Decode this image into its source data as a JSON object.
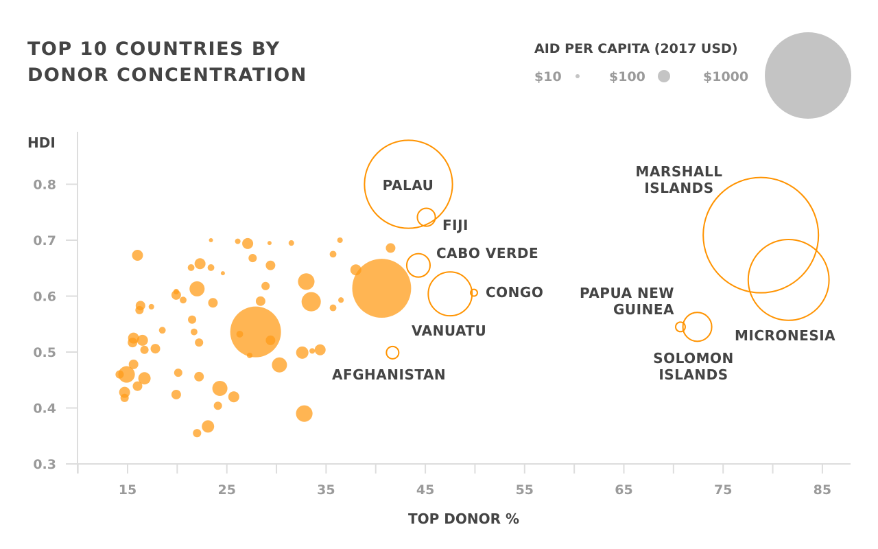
{
  "title_lines": [
    "TOP 10 COUNTRIES BY",
    "DONOR CONCENTRATION"
  ],
  "legend": {
    "title": "AID PER CAPITA (2017 USD)",
    "items": [
      {
        "label": "$10",
        "value": 10
      },
      {
        "label": "$100",
        "value": 100
      },
      {
        "label": "$1000",
        "value": 1000
      }
    ],
    "color": "#c4c4c4"
  },
  "colors": {
    "fill": "#ff9c1a",
    "highlight_stroke": "#ff9300",
    "text": "#444444",
    "tick": "#9a9a9a",
    "axis": "#dddddd"
  },
  "chart_data": {
    "type": "scatter",
    "title": "TOP 10 COUNTRIES BY DONOR CONCENTRATION",
    "xlabel": "TOP DONOR %",
    "ylabel": "HDI",
    "size_label": "AID PER CAPITA (2017 USD)",
    "xlim": [
      10,
      88
    ],
    "ylim": [
      0.3,
      0.85
    ],
    "xticks": [
      15,
      25,
      35,
      45,
      55,
      65,
      75,
      85
    ],
    "yticks": [
      0.3,
      0.4,
      0.5,
      0.6,
      0.7,
      0.8
    ],
    "grid": false,
    "legend_position": "top-right",
    "highlighted": [
      {
        "name": "PALAU",
        "x": 43.3,
        "y": 0.8,
        "aid": 1050
      },
      {
        "name": "FIJI",
        "x": 45.1,
        "y": 0.741,
        "aid": 119
      },
      {
        "name": "CABO VERDE",
        "x": 44.3,
        "y": 0.655,
        "aid": 141
      },
      {
        "name": "VANUATU",
        "x": 47.5,
        "y": 0.604,
        "aid": 266
      },
      {
        "name": "CONGO",
        "x": 49.9,
        "y": 0.606,
        "aid": 21
      },
      {
        "name": "AFGHANISTAN",
        "x": 41.7,
        "y": 0.499,
        "aid": 100
      },
      {
        "name": "MARSHALL ISLANDS",
        "x": 78.8,
        "y": 0.709,
        "aid": 2450
      },
      {
        "name": "PAPUA NEW GUINEA",
        "x": 70.7,
        "y": 0.545,
        "aid": 46
      },
      {
        "name": "SOLOMON ISLANDS",
        "x": 72.4,
        "y": 0.545,
        "aid": 167
      },
      {
        "name": "MICRONESIA",
        "x": 81.6,
        "y": 0.629,
        "aid": 840
      }
    ],
    "others": [
      {
        "x": 16.0,
        "y": 0.673,
        "aid": 68
      },
      {
        "x": 23.4,
        "y": 0.7,
        "aid": 10
      },
      {
        "x": 26.1,
        "y": 0.698,
        "aid": 15
      },
      {
        "x": 27.1,
        "y": 0.694,
        "aid": 68
      },
      {
        "x": 29.3,
        "y": 0.695,
        "aid": 10
      },
      {
        "x": 31.5,
        "y": 0.695,
        "aid": 15
      },
      {
        "x": 36.4,
        "y": 0.7,
        "aid": 15
      },
      {
        "x": 41.5,
        "y": 0.686,
        "aid": 46
      },
      {
        "x": 21.4,
        "y": 0.651,
        "aid": 21
      },
      {
        "x": 22.3,
        "y": 0.658,
        "aid": 68
      },
      {
        "x": 23.4,
        "y": 0.651,
        "aid": 21
      },
      {
        "x": 24.6,
        "y": 0.641,
        "aid": 10
      },
      {
        "x": 27.6,
        "y": 0.668,
        "aid": 32
      },
      {
        "x": 29.4,
        "y": 0.655,
        "aid": 46
      },
      {
        "x": 35.7,
        "y": 0.675,
        "aid": 21
      },
      {
        "x": 38.0,
        "y": 0.647,
        "aid": 68
      },
      {
        "x": 22.0,
        "y": 0.613,
        "aid": 109
      },
      {
        "x": 19.9,
        "y": 0.602,
        "aid": 46
      },
      {
        "x": 19.9,
        "y": 0.608,
        "aid": 15
      },
      {
        "x": 20.6,
        "y": 0.593,
        "aid": 21
      },
      {
        "x": 23.6,
        "y": 0.588,
        "aid": 46
      },
      {
        "x": 28.9,
        "y": 0.618,
        "aid": 32
      },
      {
        "x": 28.4,
        "y": 0.591,
        "aid": 46
      },
      {
        "x": 33.0,
        "y": 0.626,
        "aid": 114
      },
      {
        "x": 33.5,
        "y": 0.59,
        "aid": 124
      },
      {
        "x": 36.5,
        "y": 0.593,
        "aid": 15
      },
      {
        "x": 35.7,
        "y": 0.579,
        "aid": 21
      },
      {
        "x": 40.6,
        "y": 0.614,
        "aid": 425
      },
      {
        "x": 16.3,
        "y": 0.583,
        "aid": 46
      },
      {
        "x": 16.2,
        "y": 0.575,
        "aid": 32
      },
      {
        "x": 17.4,
        "y": 0.581,
        "aid": 15
      },
      {
        "x": 18.5,
        "y": 0.539,
        "aid": 21
      },
      {
        "x": 21.5,
        "y": 0.558,
        "aid": 32
      },
      {
        "x": 21.7,
        "y": 0.536,
        "aid": 21
      },
      {
        "x": 22.2,
        "y": 0.517,
        "aid": 32
      },
      {
        "x": 15.6,
        "y": 0.525,
        "aid": 68
      },
      {
        "x": 15.5,
        "y": 0.517,
        "aid": 46
      },
      {
        "x": 16.5,
        "y": 0.521,
        "aid": 68
      },
      {
        "x": 16.7,
        "y": 0.504,
        "aid": 32
      },
      {
        "x": 17.8,
        "y": 0.506,
        "aid": 46
      },
      {
        "x": 20.1,
        "y": 0.463,
        "aid": 32
      },
      {
        "x": 15.6,
        "y": 0.478,
        "aid": 46
      },
      {
        "x": 14.9,
        "y": 0.46,
        "aid": 114
      },
      {
        "x": 14.2,
        "y": 0.46,
        "aid": 32
      },
      {
        "x": 16.7,
        "y": 0.453,
        "aid": 100
      },
      {
        "x": 16.0,
        "y": 0.439,
        "aid": 46
      },
      {
        "x": 14.7,
        "y": 0.428,
        "aid": 68
      },
      {
        "x": 14.7,
        "y": 0.418,
        "aid": 32
      },
      {
        "x": 19.9,
        "y": 0.424,
        "aid": 46
      },
      {
        "x": 22.2,
        "y": 0.456,
        "aid": 46
      },
      {
        "x": 24.3,
        "y": 0.435,
        "aid": 109
      },
      {
        "x": 25.7,
        "y": 0.42,
        "aid": 68
      },
      {
        "x": 24.1,
        "y": 0.404,
        "aid": 32
      },
      {
        "x": 23.1,
        "y": 0.367,
        "aid": 100
      },
      {
        "x": 22.0,
        "y": 0.355,
        "aid": 32
      },
      {
        "x": 32.8,
        "y": 0.39,
        "aid": 114
      },
      {
        "x": 27.9,
        "y": 0.536,
        "aid": 330
      },
      {
        "x": 26.3,
        "y": 0.532,
        "aid": 21
      },
      {
        "x": 29.4,
        "y": 0.521,
        "aid": 46
      },
      {
        "x": 27.3,
        "y": 0.494,
        "aid": 15
      },
      {
        "x": 30.3,
        "y": 0.477,
        "aid": 109
      },
      {
        "x": 32.6,
        "y": 0.499,
        "aid": 100
      },
      {
        "x": 33.6,
        "y": 0.502,
        "aid": 15
      },
      {
        "x": 34.4,
        "y": 0.504,
        "aid": 68
      }
    ]
  }
}
